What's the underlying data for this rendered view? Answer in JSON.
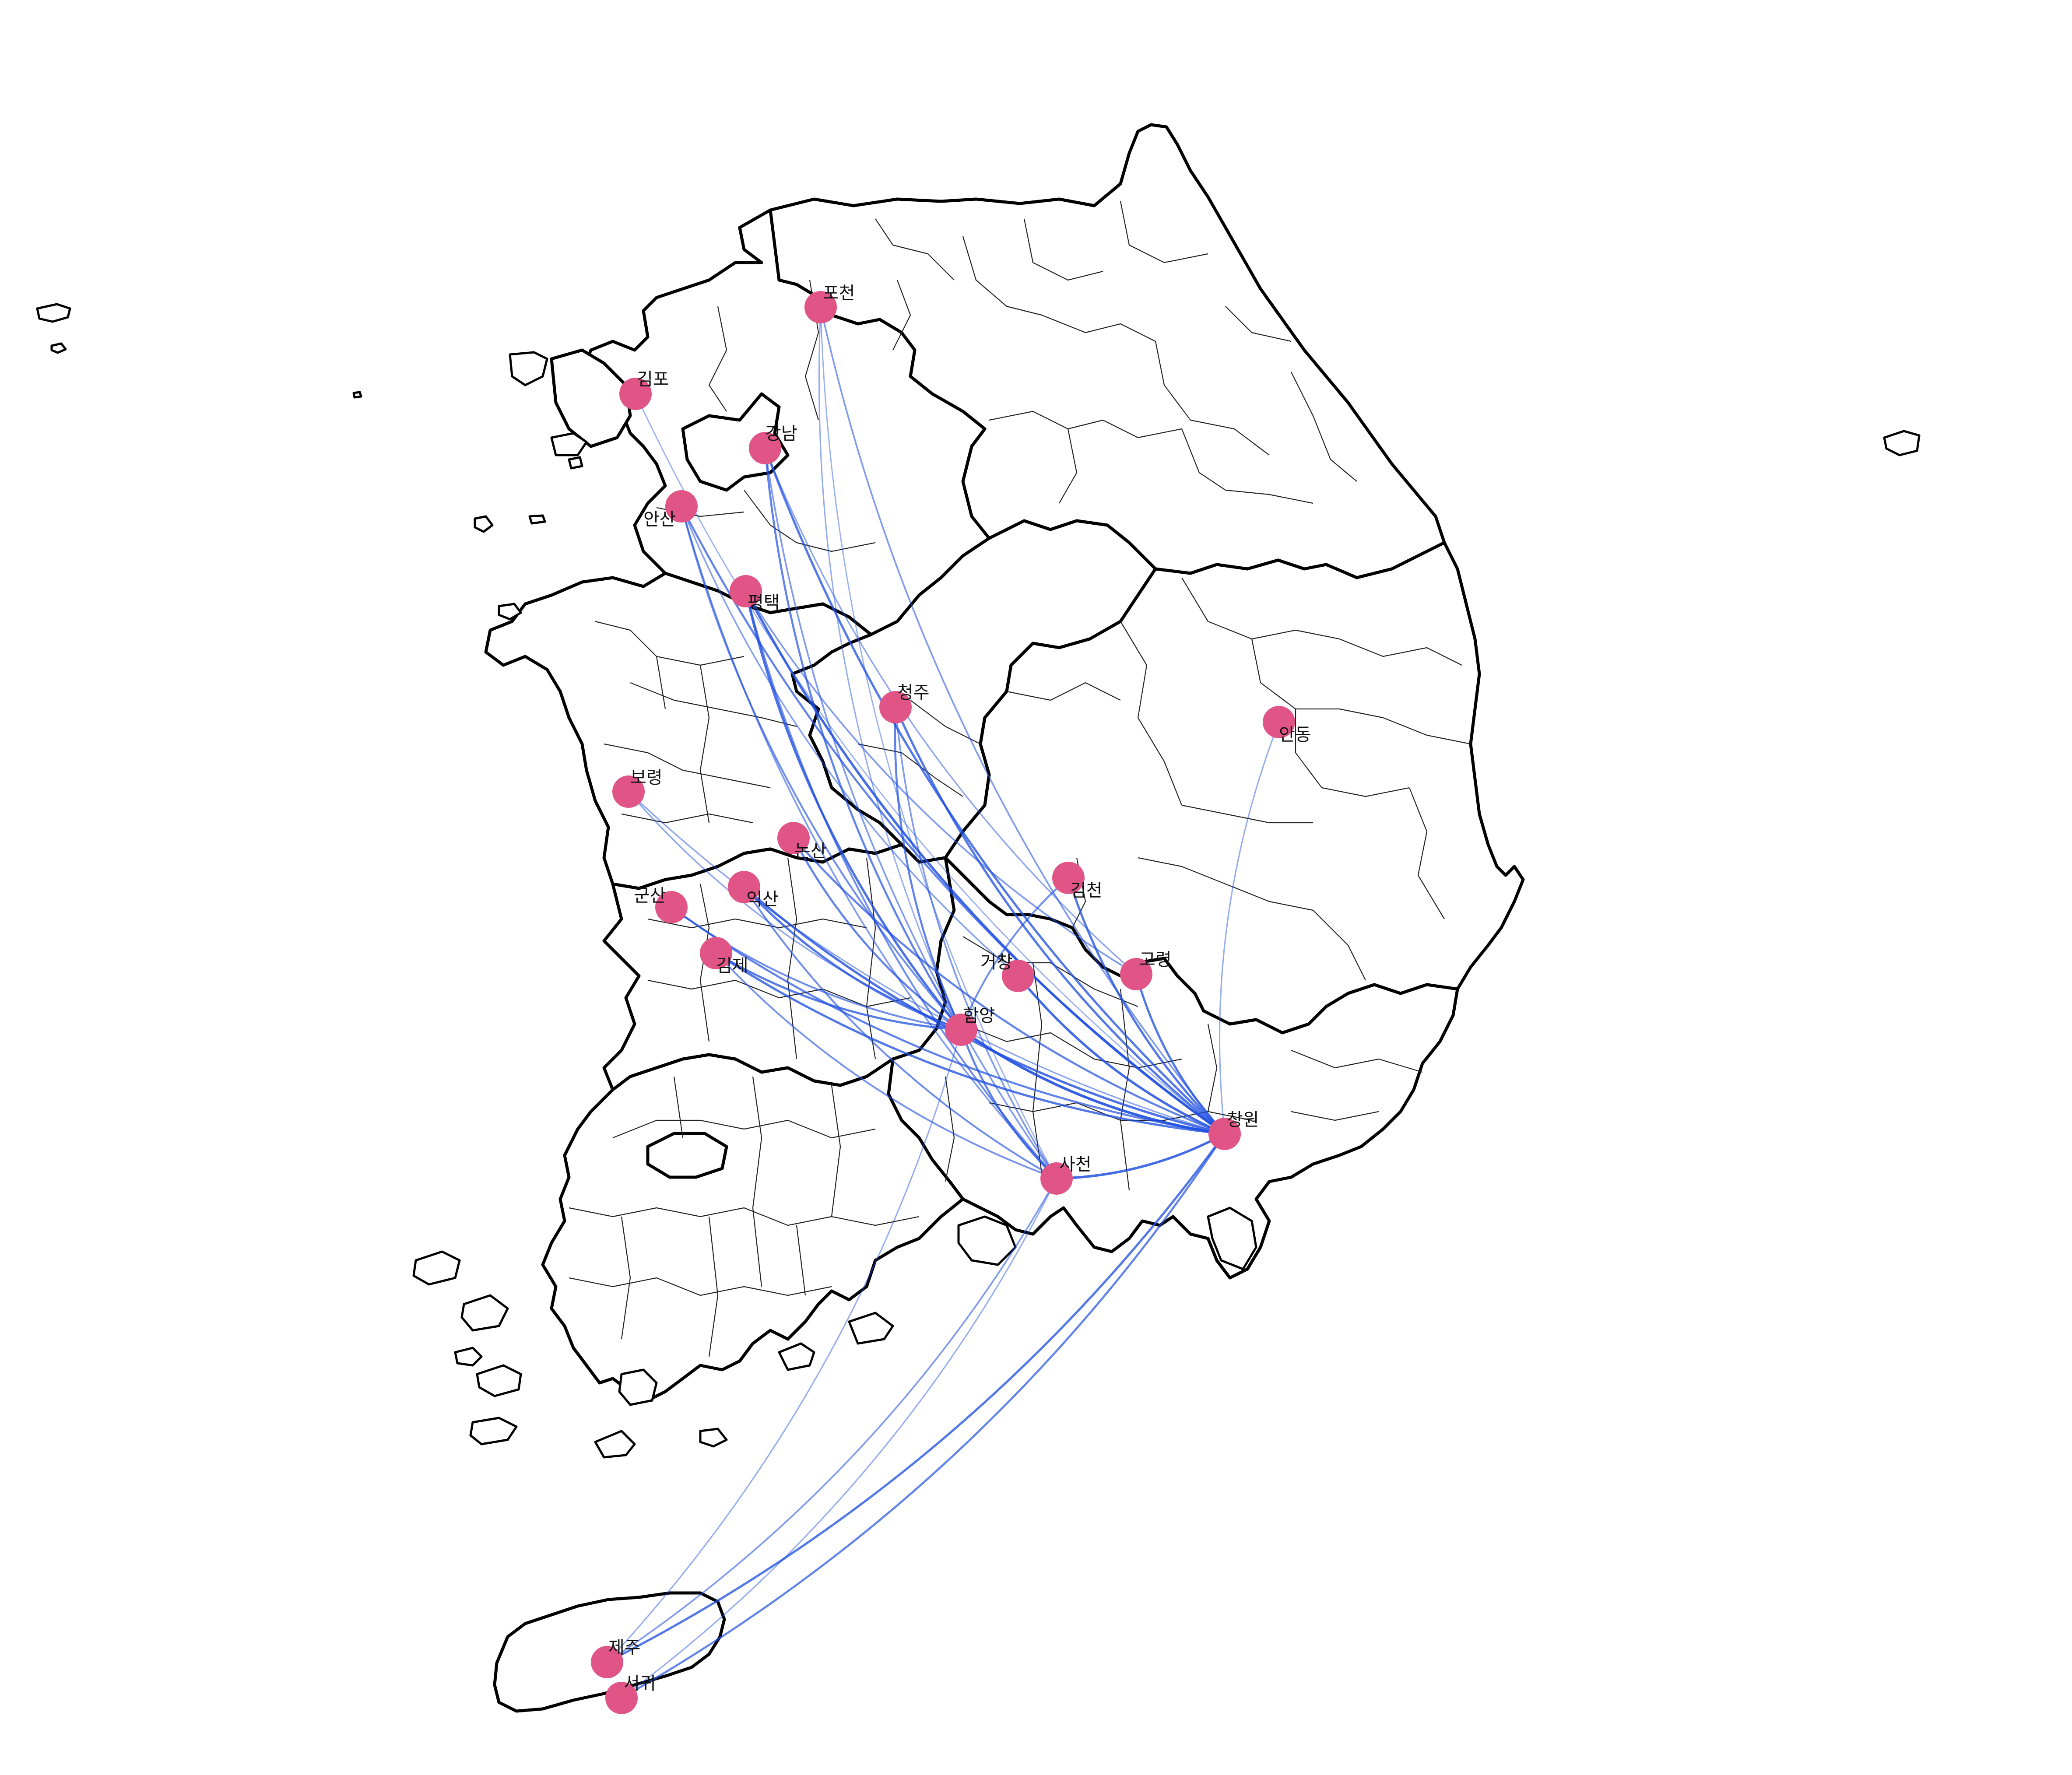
{
  "map": {
    "colors": {
      "land": "#ffffff",
      "border": "#000000",
      "flow": "#1f4fe0",
      "city": "#e05585",
      "label": "#111111"
    },
    "cities": [
      {
        "id": "pocheon",
        "name": "포천"
      },
      {
        "id": "gimpo",
        "name": "김포"
      },
      {
        "id": "gangnam",
        "name": "강남"
      },
      {
        "id": "ansan",
        "name": "안산"
      },
      {
        "id": "pyeongtaek",
        "name": "평택"
      },
      {
        "id": "cheongju",
        "name": "청주"
      },
      {
        "id": "andong",
        "name": "안동"
      },
      {
        "id": "boryeong",
        "name": "보령"
      },
      {
        "id": "nonsan",
        "name": "논산"
      },
      {
        "id": "iksan",
        "name": "익산"
      },
      {
        "id": "gunsan",
        "name": "군산"
      },
      {
        "id": "gimcheon",
        "name": "김천"
      },
      {
        "id": "gimje",
        "name": "김제"
      },
      {
        "id": "geochang",
        "name": "거창"
      },
      {
        "id": "goryeong",
        "name": "고령"
      },
      {
        "id": "hamyang",
        "name": "함양"
      },
      {
        "id": "changwon",
        "name": "창원"
      },
      {
        "id": "sacheon",
        "name": "사천"
      },
      {
        "id": "jeju",
        "name": "제주"
      },
      {
        "id": "seogwi",
        "name": "서귀"
      }
    ],
    "flows": [
      {
        "from": "pocheon",
        "to": "changwon",
        "weight": 0.5
      },
      {
        "from": "pocheon",
        "to": "hamyang",
        "weight": 0.35
      },
      {
        "from": "pocheon",
        "to": "sacheon",
        "weight": 0.3
      },
      {
        "from": "gangnam",
        "to": "changwon",
        "weight": 0.8
      },
      {
        "from": "gangnam",
        "to": "hamyang",
        "weight": 0.7
      },
      {
        "from": "gangnam",
        "to": "sacheon",
        "weight": 0.5
      },
      {
        "from": "gangnam",
        "to": "goryeong",
        "weight": 0.4
      },
      {
        "from": "gimpo",
        "to": "changwon",
        "weight": 0.3
      },
      {
        "from": "ansan",
        "to": "changwon",
        "weight": 0.7
      },
      {
        "from": "ansan",
        "to": "hamyang",
        "weight": 0.6
      },
      {
        "from": "ansan",
        "to": "sacheon",
        "weight": 0.5
      },
      {
        "from": "ansan",
        "to": "geochang",
        "weight": 0.45
      },
      {
        "from": "pyeongtaek",
        "to": "changwon",
        "weight": 0.9
      },
      {
        "from": "pyeongtaek",
        "to": "hamyang",
        "weight": 0.85
      },
      {
        "from": "pyeongtaek",
        "to": "sacheon",
        "weight": 0.6
      },
      {
        "from": "pyeongtaek",
        "to": "goryeong",
        "weight": 0.5
      },
      {
        "from": "cheongju",
        "to": "changwon",
        "weight": 0.8
      },
      {
        "from": "cheongju",
        "to": "hamyang",
        "weight": 0.7
      },
      {
        "from": "cheongju",
        "to": "sacheon",
        "weight": 0.5
      },
      {
        "from": "andong",
        "to": "changwon",
        "weight": 0.35
      },
      {
        "from": "boryeong",
        "to": "changwon",
        "weight": 0.4
      },
      {
        "from": "boryeong",
        "to": "hamyang",
        "weight": 0.4
      },
      {
        "from": "nonsan",
        "to": "changwon",
        "weight": 0.7
      },
      {
        "from": "nonsan",
        "to": "hamyang",
        "weight": 0.7
      },
      {
        "from": "iksan",
        "to": "changwon",
        "weight": 0.85
      },
      {
        "from": "iksan",
        "to": "hamyang",
        "weight": 0.8
      },
      {
        "from": "iksan",
        "to": "sacheon",
        "weight": 0.6
      },
      {
        "from": "gunsan",
        "to": "changwon",
        "weight": 0.7
      },
      {
        "from": "gunsan",
        "to": "hamyang",
        "weight": 0.6
      },
      {
        "from": "gimje",
        "to": "changwon",
        "weight": 0.8
      },
      {
        "from": "gimje",
        "to": "hamyang",
        "weight": 0.75
      },
      {
        "from": "gimje",
        "to": "sacheon",
        "weight": 0.55
      },
      {
        "from": "gimcheon",
        "to": "changwon",
        "weight": 0.8
      },
      {
        "from": "gimcheon",
        "to": "hamyang",
        "weight": 0.6
      },
      {
        "from": "geochang",
        "to": "changwon",
        "weight": 0.9
      },
      {
        "from": "goryeong",
        "to": "changwon",
        "weight": 0.8
      },
      {
        "from": "hamyang",
        "to": "changwon",
        "weight": 1.0
      },
      {
        "from": "hamyang",
        "to": "sacheon",
        "weight": 0.7
      },
      {
        "from": "sacheon",
        "to": "changwon",
        "weight": 0.9
      },
      {
        "from": "jeju",
        "to": "changwon",
        "weight": 0.8
      },
      {
        "from": "jeju",
        "to": "sacheon",
        "weight": 0.5
      },
      {
        "from": "jeju",
        "to": "hamyang",
        "weight": 0.35
      },
      {
        "from": "seogwi",
        "to": "changwon",
        "weight": 0.7
      },
      {
        "from": "seogwi",
        "to": "sacheon",
        "weight": 0.35
      }
    ]
  }
}
